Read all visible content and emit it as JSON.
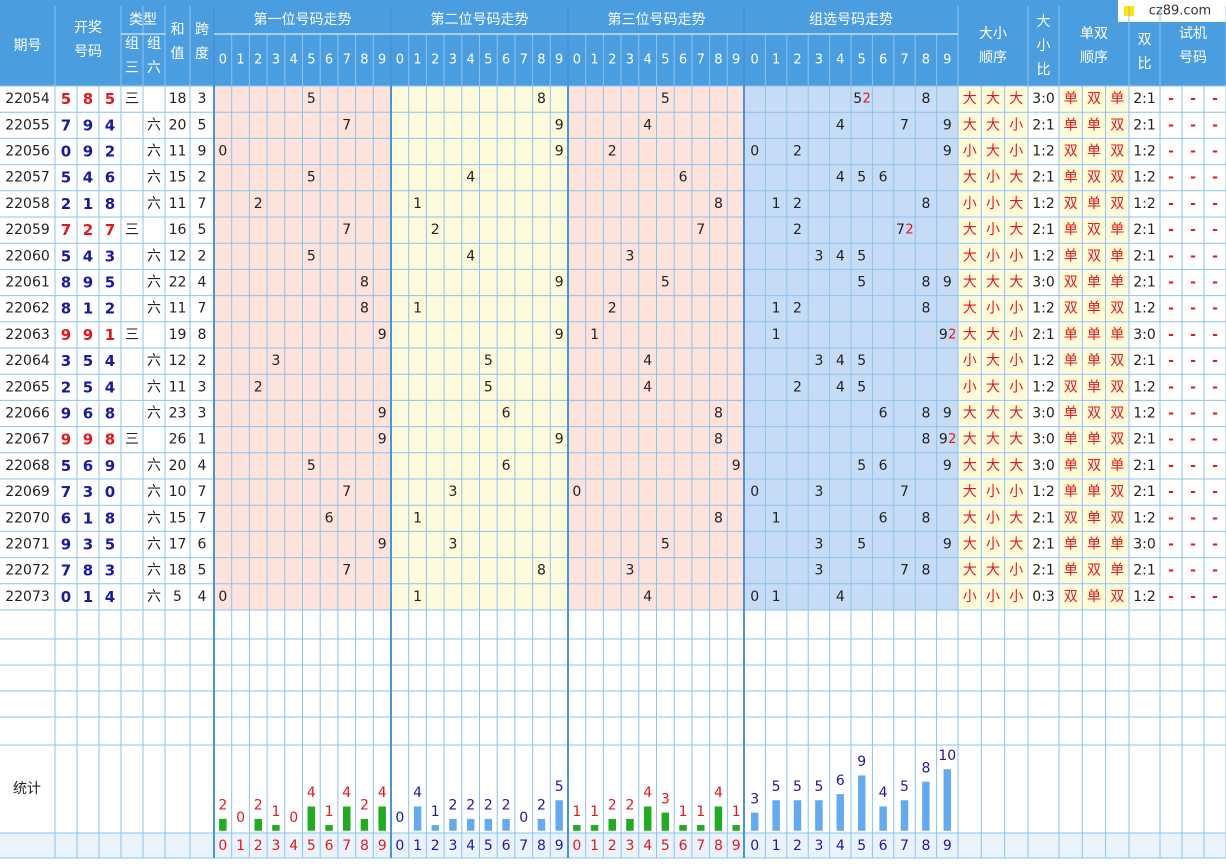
{
  "colors": {
    "header_bg": "#4a9ee0",
    "grid_line": "#8dc2ec",
    "sep_line": "#4a93d4",
    "pos1_bg": "#fde3dc",
    "pos2_bg": "#fdfadc",
    "pos3_bg": "#fde3dc",
    "group_bg": "#c6dcf6",
    "text_dark": "#222222",
    "text_red": "#e0181e",
    "text_blue": "#1a1aa0",
    "bar_green": "#22aa22",
    "bar_blue": "#66aaee",
    "cell_yellow": "#fffbd8",
    "logo_yellow": "#ffe600"
  },
  "header": {
    "period": "期号",
    "draw": "开奖号码",
    "type": "类型",
    "type_g3": "组三",
    "type_g6": "组六",
    "sum": "和值",
    "span": "跨度",
    "pos1": "第一位号码走势",
    "pos2": "第二位号码走势",
    "pos3": "第三位号码走势",
    "group": "组选号码走势",
    "bs_order": "大小顺序",
    "bs_ratio": "大小比",
    "oe_order": "单双顺序",
    "oe_ratio": "单双比",
    "trial": "试机号码",
    "digits": [
      "0",
      "1",
      "2",
      "3",
      "4",
      "5",
      "6",
      "7",
      "8",
      "9"
    ]
  },
  "logo": {
    "text": "cz89.com"
  },
  "stats_label": "统计",
  "rows": [
    {
      "period": "22054",
      "draw": [
        5,
        8,
        5
      ],
      "g3": "三",
      "g6": "",
      "sum": "18",
      "span": "3",
      "group": [
        5,
        8
      ],
      "group_double": 5,
      "bs": [
        "大",
        "大",
        "大"
      ],
      "bs_ratio": "3:0",
      "oe": [
        "单",
        "双",
        "单"
      ],
      "oe_ratio": "2:1",
      "trial": [
        "-",
        "-",
        "-"
      ]
    },
    {
      "period": "22055",
      "draw": [
        7,
        9,
        4
      ],
      "g3": "",
      "g6": "六",
      "sum": "20",
      "span": "5",
      "group": [
        4,
        7,
        9
      ],
      "group_double": null,
      "bs": [
        "大",
        "大",
        "小"
      ],
      "bs_ratio": "2:1",
      "oe": [
        "单",
        "单",
        "双"
      ],
      "oe_ratio": "2:1",
      "trial": [
        "-",
        "-",
        "-"
      ]
    },
    {
      "period": "22056",
      "draw": [
        0,
        9,
        2
      ],
      "g3": "",
      "g6": "六",
      "sum": "11",
      "span": "9",
      "group": [
        0,
        2,
        9
      ],
      "group_double": null,
      "bs": [
        "小",
        "大",
        "小"
      ],
      "bs_ratio": "1:2",
      "oe": [
        "双",
        "单",
        "双"
      ],
      "oe_ratio": "1:2",
      "trial": [
        "-",
        "-",
        "-"
      ]
    },
    {
      "period": "22057",
      "draw": [
        5,
        4,
        6
      ],
      "g3": "",
      "g6": "六",
      "sum": "15",
      "span": "2",
      "group": [
        4,
        5,
        6
      ],
      "group_double": null,
      "bs": [
        "大",
        "小",
        "大"
      ],
      "bs_ratio": "2:1",
      "oe": [
        "单",
        "双",
        "双"
      ],
      "oe_ratio": "1:2",
      "trial": [
        "-",
        "-",
        "-"
      ]
    },
    {
      "period": "22058",
      "draw": [
        2,
        1,
        8
      ],
      "g3": "",
      "g6": "六",
      "sum": "11",
      "span": "7",
      "group": [
        1,
        2,
        8
      ],
      "group_double": null,
      "bs": [
        "小",
        "小",
        "大"
      ],
      "bs_ratio": "1:2",
      "oe": [
        "双",
        "单",
        "双"
      ],
      "oe_ratio": "1:2",
      "trial": [
        "-",
        "-",
        "-"
      ]
    },
    {
      "period": "22059",
      "draw": [
        7,
        2,
        7
      ],
      "g3": "三",
      "g6": "",
      "sum": "16",
      "span": "5",
      "group": [
        2,
        7
      ],
      "group_double": 7,
      "bs": [
        "大",
        "小",
        "大"
      ],
      "bs_ratio": "2:1",
      "oe": [
        "单",
        "双",
        "单"
      ],
      "oe_ratio": "2:1",
      "trial": [
        "-",
        "-",
        "-"
      ]
    },
    {
      "period": "22060",
      "draw": [
        5,
        4,
        3
      ],
      "g3": "",
      "g6": "六",
      "sum": "12",
      "span": "2",
      "group": [
        3,
        4,
        5
      ],
      "group_double": null,
      "bs": [
        "大",
        "小",
        "小"
      ],
      "bs_ratio": "1:2",
      "oe": [
        "单",
        "双",
        "单"
      ],
      "oe_ratio": "2:1",
      "trial": [
        "-",
        "-",
        "-"
      ]
    },
    {
      "period": "22061",
      "draw": [
        8,
        9,
        5
      ],
      "g3": "",
      "g6": "六",
      "sum": "22",
      "span": "4",
      "group": [
        5,
        8,
        9
      ],
      "group_double": null,
      "bs": [
        "大",
        "大",
        "大"
      ],
      "bs_ratio": "3:0",
      "oe": [
        "双",
        "单",
        "单"
      ],
      "oe_ratio": "2:1",
      "trial": [
        "-",
        "-",
        "-"
      ]
    },
    {
      "period": "22062",
      "draw": [
        8,
        1,
        2
      ],
      "g3": "",
      "g6": "六",
      "sum": "11",
      "span": "7",
      "group": [
        1,
        2,
        8
      ],
      "group_double": null,
      "bs": [
        "大",
        "小",
        "小"
      ],
      "bs_ratio": "1:2",
      "oe": [
        "双",
        "单",
        "双"
      ],
      "oe_ratio": "1:2",
      "trial": [
        "-",
        "-",
        "-"
      ]
    },
    {
      "period": "22063",
      "draw": [
        9,
        9,
        1
      ],
      "g3": "三",
      "g6": "",
      "sum": "19",
      "span": "8",
      "group": [
        1,
        9
      ],
      "group_double": 9,
      "bs": [
        "大",
        "大",
        "小"
      ],
      "bs_ratio": "2:1",
      "oe": [
        "单",
        "单",
        "单"
      ],
      "oe_ratio": "3:0",
      "trial": [
        "-",
        "-",
        "-"
      ]
    },
    {
      "period": "22064",
      "draw": [
        3,
        5,
        4
      ],
      "g3": "",
      "g6": "六",
      "sum": "12",
      "span": "2",
      "group": [
        3,
        4,
        5
      ],
      "group_double": null,
      "bs": [
        "小",
        "大",
        "小"
      ],
      "bs_ratio": "1:2",
      "oe": [
        "单",
        "单",
        "双"
      ],
      "oe_ratio": "2:1",
      "trial": [
        "-",
        "-",
        "-"
      ]
    },
    {
      "period": "22065",
      "draw": [
        2,
        5,
        4
      ],
      "g3": "",
      "g6": "六",
      "sum": "11",
      "span": "3",
      "group": [
        2,
        4,
        5
      ],
      "group_double": null,
      "bs": [
        "小",
        "大",
        "小"
      ],
      "bs_ratio": "1:2",
      "oe": [
        "双",
        "单",
        "双"
      ],
      "oe_ratio": "1:2",
      "trial": [
        "-",
        "-",
        "-"
      ]
    },
    {
      "period": "22066",
      "draw": [
        9,
        6,
        8
      ],
      "g3": "",
      "g6": "六",
      "sum": "23",
      "span": "3",
      "group": [
        6,
        8,
        9
      ],
      "group_double": null,
      "bs": [
        "大",
        "大",
        "大"
      ],
      "bs_ratio": "3:0",
      "oe": [
        "单",
        "双",
        "双"
      ],
      "oe_ratio": "1:2",
      "trial": [
        "-",
        "-",
        "-"
      ]
    },
    {
      "period": "22067",
      "draw": [
        9,
        9,
        8
      ],
      "g3": "三",
      "g6": "",
      "sum": "26",
      "span": "1",
      "group": [
        8,
        9
      ],
      "group_double": 9,
      "bs": [
        "大",
        "大",
        "大"
      ],
      "bs_ratio": "3:0",
      "oe": [
        "单",
        "单",
        "双"
      ],
      "oe_ratio": "2:1",
      "trial": [
        "-",
        "-",
        "-"
      ]
    },
    {
      "period": "22068",
      "draw": [
        5,
        6,
        9
      ],
      "g3": "",
      "g6": "六",
      "sum": "20",
      "span": "4",
      "group": [
        5,
        6,
        9
      ],
      "group_double": null,
      "bs": [
        "大",
        "大",
        "大"
      ],
      "bs_ratio": "3:0",
      "oe": [
        "单",
        "双",
        "单"
      ],
      "oe_ratio": "2:1",
      "trial": [
        "-",
        "-",
        "-"
      ]
    },
    {
      "period": "22069",
      "draw": [
        7,
        3,
        0
      ],
      "g3": "",
      "g6": "六",
      "sum": "10",
      "span": "7",
      "group": [
        0,
        3,
        7
      ],
      "group_double": null,
      "bs": [
        "大",
        "小",
        "小"
      ],
      "bs_ratio": "1:2",
      "oe": [
        "单",
        "单",
        "双"
      ],
      "oe_ratio": "2:1",
      "trial": [
        "-",
        "-",
        "-"
      ]
    },
    {
      "period": "22070",
      "draw": [
        6,
        1,
        8
      ],
      "g3": "",
      "g6": "六",
      "sum": "15",
      "span": "7",
      "group": [
        1,
        6,
        8
      ],
      "group_double": null,
      "bs": [
        "大",
        "小",
        "大"
      ],
      "bs_ratio": "2:1",
      "oe": [
        "双",
        "单",
        "双"
      ],
      "oe_ratio": "1:2",
      "trial": [
        "-",
        "-",
        "-"
      ]
    },
    {
      "period": "22071",
      "draw": [
        9,
        3,
        5
      ],
      "g3": "",
      "g6": "六",
      "sum": "17",
      "span": "6",
      "group": [
        3,
        5,
        9
      ],
      "group_double": null,
      "bs": [
        "大",
        "小",
        "大"
      ],
      "bs_ratio": "2:1",
      "oe": [
        "单",
        "单",
        "单"
      ],
      "oe_ratio": "3:0",
      "trial": [
        "-",
        "-",
        "-"
      ]
    },
    {
      "period": "22072",
      "draw": [
        7,
        8,
        3
      ],
      "g3": "",
      "g6": "六",
      "sum": "18",
      "span": "5",
      "group": [
        3,
        7,
        8
      ],
      "group_double": null,
      "bs": [
        "大",
        "大",
        "小"
      ],
      "bs_ratio": "2:1",
      "oe": [
        "单",
        "双",
        "单"
      ],
      "oe_ratio": "2:1",
      "trial": [
        "-",
        "-",
        "-"
      ]
    },
    {
      "period": "22073",
      "draw": [
        0,
        1,
        4
      ],
      "g3": "",
      "g6": "六",
      "sum": "5",
      "span": "4",
      "group": [
        0,
        1,
        4
      ],
      "group_double": null,
      "bs": [
        "小",
        "小",
        "小"
      ],
      "bs_ratio": "0:3",
      "oe": [
        "双",
        "单",
        "双"
      ],
      "oe_ratio": "1:2",
      "trial": [
        "-",
        "-",
        "-"
      ]
    }
  ],
  "chart_data": {
    "type": "bar",
    "categories": [
      "0",
      "1",
      "2",
      "3",
      "4",
      "5",
      "6",
      "7",
      "8",
      "9"
    ],
    "series": [
      {
        "values": [
          2,
          0,
          2,
          1,
          0,
          4,
          1,
          4,
          2,
          4
        ]
      },
      {
        "values": [
          0,
          4,
          1,
          2,
          2,
          2,
          2,
          0,
          2,
          5
        ]
      },
      {
        "values": [
          1,
          1,
          2,
          2,
          4,
          3,
          1,
          1,
          4,
          1
        ]
      },
      {
        "values": [
          3,
          5,
          5,
          5,
          6,
          9,
          4,
          5,
          8,
          10
        ]
      }
    ]
  }
}
